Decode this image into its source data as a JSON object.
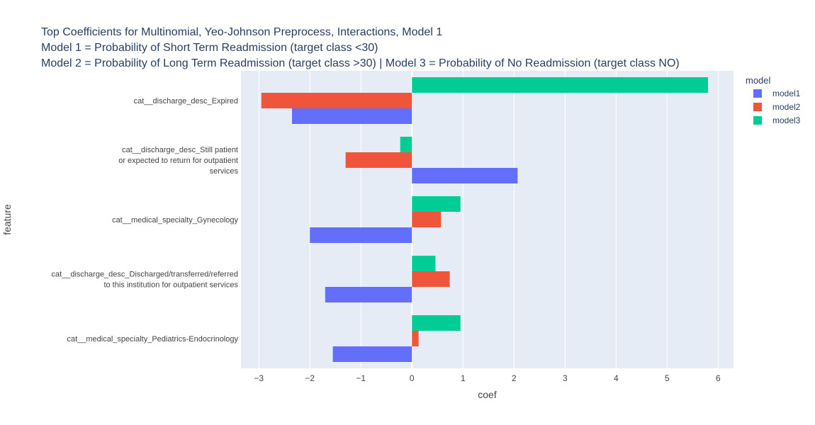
{
  "chart_data": {
    "type": "bar",
    "orientation": "horizontal",
    "title": [
      "Top Coefficients for Multinomial, Yeo-Johnson Preprocess, Interactions, Model 1",
      "Model 1 = Probability of Short Term Readmission (target class <30)",
      "Model 2 = Probability of Long Term Readmission (target class >30) | Model 3 = Probability of No Readmission (target class NO)"
    ],
    "xlabel": "coef",
    "ylabel": "feature",
    "xlim": [
      -3.35,
      6.3
    ],
    "xticks": [
      -3,
      -2,
      -1,
      0,
      1,
      2,
      3,
      4,
      5,
      6
    ],
    "xtick_labels": [
      "−3",
      "−2",
      "−1",
      "0",
      "1",
      "2",
      "3",
      "4",
      "5",
      "6"
    ],
    "grid": true,
    "legend_title": "model",
    "legend_position": "top-right",
    "categories": [
      [
        "cat__discharge_desc_Expired"
      ],
      [
        "cat__discharge_desc_Still patient",
        "or expected to return for outpatient",
        "services"
      ],
      [
        "cat__medical_specialty_Gynecology"
      ],
      [
        "cat__discharge_desc_Discharged/transferred/referred",
        "to this institution for outpatient services"
      ],
      [
        "cat__medical_specialty_Pediatrics-Endocrinology"
      ]
    ],
    "series": [
      {
        "name": "model1",
        "color": "#636efa",
        "values": [
          -2.35,
          2.07,
          -2.0,
          -1.7,
          -1.55
        ]
      },
      {
        "name": "model2",
        "color": "#ef553b",
        "values": [
          -2.95,
          -1.3,
          0.57,
          0.74,
          0.13
        ]
      },
      {
        "name": "model3",
        "color": "#00cc96",
        "values": [
          5.8,
          -0.23,
          0.95,
          0.46,
          0.95
        ]
      }
    ]
  }
}
